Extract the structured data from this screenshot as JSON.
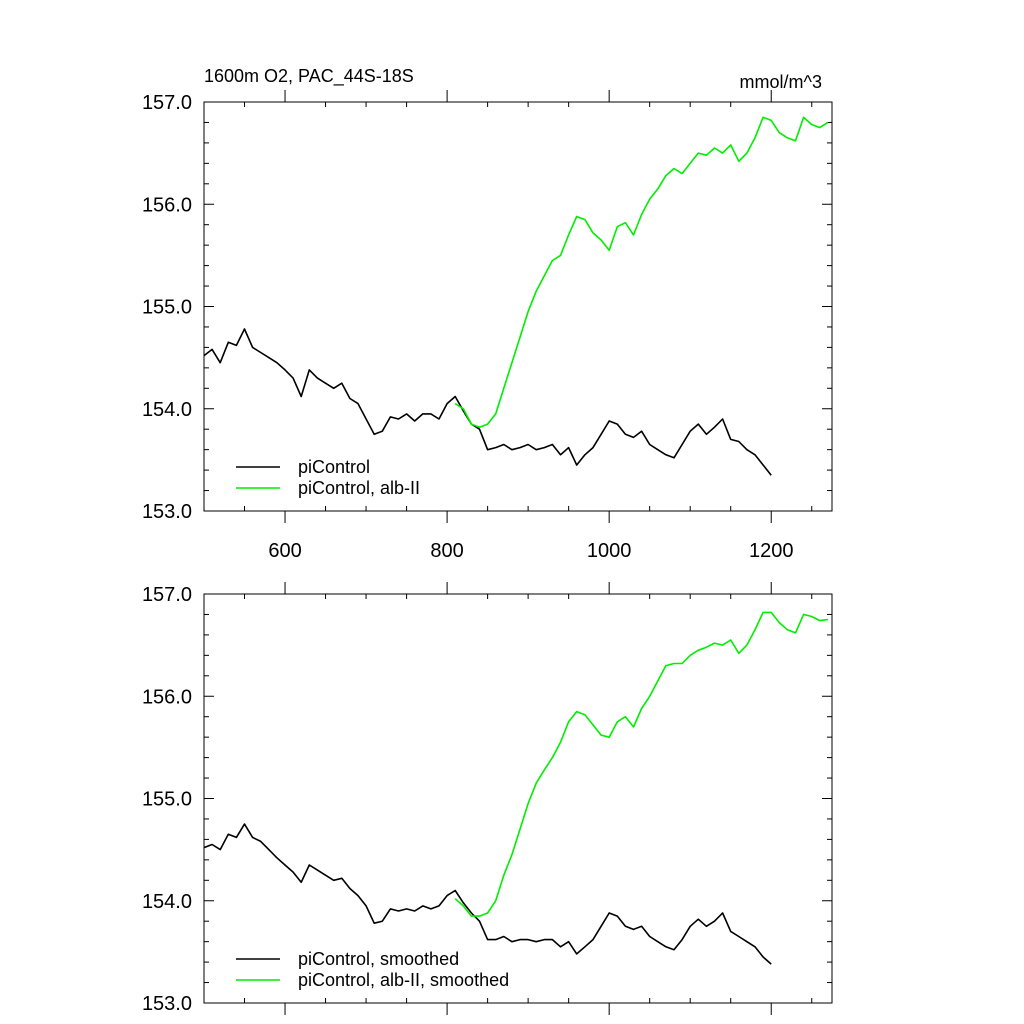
{
  "chart_data": [
    {
      "type": "line",
      "title": "1600m O2, PAC_44S-18S",
      "units": "mmol/m^3",
      "xlim": [
        500,
        1275
      ],
      "ylim": [
        153.0,
        157.0
      ],
      "x_ticks": [
        600,
        800,
        1000,
        1200
      ],
      "x_tick_labels": [
        "600",
        "800",
        "1000",
        "1200"
      ],
      "y_ticks": [
        153.0,
        154.0,
        155.0,
        156.0,
        157.0
      ],
      "y_tick_labels": [
        "153.0",
        "154.0",
        "155.0",
        "156.0",
        "157.0"
      ],
      "show_x_tick_labels": true,
      "grid": false,
      "legend_position": "bottom-left",
      "series": [
        {
          "name": "piControl",
          "color": "#000000",
          "x": [
            500,
            510,
            520,
            530,
            540,
            550,
            560,
            570,
            580,
            590,
            600,
            610,
            620,
            630,
            640,
            650,
            660,
            670,
            680,
            690,
            700,
            710,
            720,
            730,
            740,
            750,
            760,
            770,
            780,
            790,
            800,
            810,
            820,
            830,
            840,
            850,
            860,
            870,
            880,
            890,
            900,
            910,
            920,
            930,
            940,
            950,
            960,
            970,
            980,
            990,
            1000,
            1010,
            1020,
            1030,
            1040,
            1050,
            1060,
            1070,
            1080,
            1090,
            1100,
            1110,
            1120,
            1130,
            1140,
            1150,
            1160,
            1170,
            1180,
            1190,
            1200
          ],
          "y": [
            154.52,
            154.58,
            154.45,
            154.65,
            154.62,
            154.78,
            154.6,
            154.55,
            154.5,
            154.45,
            154.38,
            154.3,
            154.12,
            154.38,
            154.3,
            154.25,
            154.2,
            154.25,
            154.1,
            154.05,
            153.9,
            153.75,
            153.78,
            153.92,
            153.9,
            153.95,
            153.88,
            153.95,
            153.95,
            153.9,
            154.05,
            154.12,
            153.98,
            153.85,
            153.8,
            153.6,
            153.62,
            153.65,
            153.6,
            153.62,
            153.65,
            153.6,
            153.62,
            153.65,
            153.55,
            153.62,
            153.45,
            153.55,
            153.62,
            153.75,
            153.88,
            153.85,
            153.75,
            153.72,
            153.78,
            153.65,
            153.6,
            153.55,
            153.52,
            153.65,
            153.78,
            153.85,
            153.75,
            153.82,
            153.9,
            153.7,
            153.68,
            153.6,
            153.55,
            153.45,
            153.35
          ]
        },
        {
          "name": "piControl, alb-II",
          "color": "#00ee00",
          "x": [
            810,
            820,
            830,
            840,
            850,
            860,
            870,
            880,
            890,
            900,
            910,
            920,
            930,
            940,
            950,
            960,
            970,
            980,
            990,
            1000,
            1010,
            1020,
            1030,
            1040,
            1050,
            1060,
            1070,
            1080,
            1090,
            1100,
            1110,
            1120,
            1130,
            1140,
            1150,
            1160,
            1170,
            1180,
            1190,
            1200,
            1210,
            1220,
            1230,
            1240,
            1250,
            1260,
            1270
          ],
          "y": [
            154.05,
            154.0,
            153.85,
            153.82,
            153.85,
            153.95,
            154.2,
            154.45,
            154.7,
            154.95,
            155.15,
            155.3,
            155.45,
            155.5,
            155.7,
            155.88,
            155.85,
            155.72,
            155.65,
            155.55,
            155.78,
            155.82,
            155.7,
            155.9,
            156.05,
            156.15,
            156.28,
            156.35,
            156.3,
            156.4,
            156.5,
            156.48,
            156.55,
            156.5,
            156.58,
            156.42,
            156.5,
            156.65,
            156.85,
            156.82,
            156.7,
            156.65,
            156.62,
            156.85,
            156.78,
            156.75,
            156.8
          ]
        }
      ]
    },
    {
      "type": "line",
      "title": "",
      "xlim": [
        500,
        1275
      ],
      "ylim": [
        153.0,
        157.0
      ],
      "x_ticks": [
        600,
        800,
        1000,
        1200
      ],
      "y_ticks": [
        153.0,
        154.0,
        155.0,
        156.0,
        157.0
      ],
      "y_tick_labels": [
        "153.0",
        "154.0",
        "155.0",
        "156.0",
        "157.0"
      ],
      "show_x_tick_labels": false,
      "grid": false,
      "legend_position": "bottom-left",
      "series": [
        {
          "name": "piControl, smoothed",
          "color": "#000000",
          "x": [
            500,
            510,
            520,
            530,
            540,
            550,
            560,
            570,
            580,
            590,
            600,
            610,
            620,
            630,
            640,
            650,
            660,
            670,
            680,
            690,
            700,
            710,
            720,
            730,
            740,
            750,
            760,
            770,
            780,
            790,
            800,
            810,
            820,
            830,
            840,
            850,
            860,
            870,
            880,
            890,
            900,
            910,
            920,
            930,
            940,
            950,
            960,
            970,
            980,
            990,
            1000,
            1010,
            1020,
            1030,
            1040,
            1050,
            1060,
            1070,
            1080,
            1090,
            1100,
            1110,
            1120,
            1130,
            1140,
            1150,
            1160,
            1170,
            1180,
            1190,
            1200
          ],
          "y": [
            154.52,
            154.55,
            154.5,
            154.65,
            154.62,
            154.75,
            154.62,
            154.58,
            154.5,
            154.42,
            154.35,
            154.28,
            154.18,
            154.35,
            154.3,
            154.25,
            154.2,
            154.22,
            154.12,
            154.05,
            153.95,
            153.78,
            153.8,
            153.92,
            153.9,
            153.92,
            153.9,
            153.95,
            153.92,
            153.95,
            154.05,
            154.1,
            153.98,
            153.88,
            153.8,
            153.62,
            153.62,
            153.65,
            153.6,
            153.62,
            153.62,
            153.6,
            153.62,
            153.62,
            153.55,
            153.6,
            153.48,
            153.55,
            153.62,
            153.75,
            153.88,
            153.85,
            153.75,
            153.72,
            153.75,
            153.65,
            153.6,
            153.55,
            153.52,
            153.62,
            153.75,
            153.82,
            153.75,
            153.8,
            153.88,
            153.7,
            153.65,
            153.6,
            153.55,
            153.45,
            153.38
          ]
        },
        {
          "name": "piControl, alb-II, smoothed",
          "color": "#00ee00",
          "x": [
            810,
            820,
            830,
            840,
            850,
            860,
            870,
            880,
            890,
            900,
            910,
            920,
            930,
            940,
            950,
            960,
            970,
            980,
            990,
            1000,
            1010,
            1020,
            1030,
            1040,
            1050,
            1060,
            1070,
            1080,
            1090,
            1100,
            1110,
            1120,
            1130,
            1140,
            1150,
            1160,
            1170,
            1180,
            1190,
            1200,
            1210,
            1220,
            1230,
            1240,
            1250,
            1260,
            1270
          ],
          "y": [
            154.02,
            153.95,
            153.85,
            153.85,
            153.88,
            154.0,
            154.25,
            154.45,
            154.7,
            154.95,
            155.15,
            155.28,
            155.4,
            155.55,
            155.75,
            155.85,
            155.82,
            155.72,
            155.62,
            155.6,
            155.75,
            155.8,
            155.7,
            155.88,
            156.0,
            156.15,
            156.3,
            156.32,
            156.32,
            156.4,
            156.45,
            156.48,
            156.52,
            156.5,
            156.55,
            156.42,
            156.5,
            156.65,
            156.82,
            156.82,
            156.72,
            156.65,
            156.62,
            156.8,
            156.78,
            156.74,
            156.75
          ]
        }
      ]
    }
  ]
}
